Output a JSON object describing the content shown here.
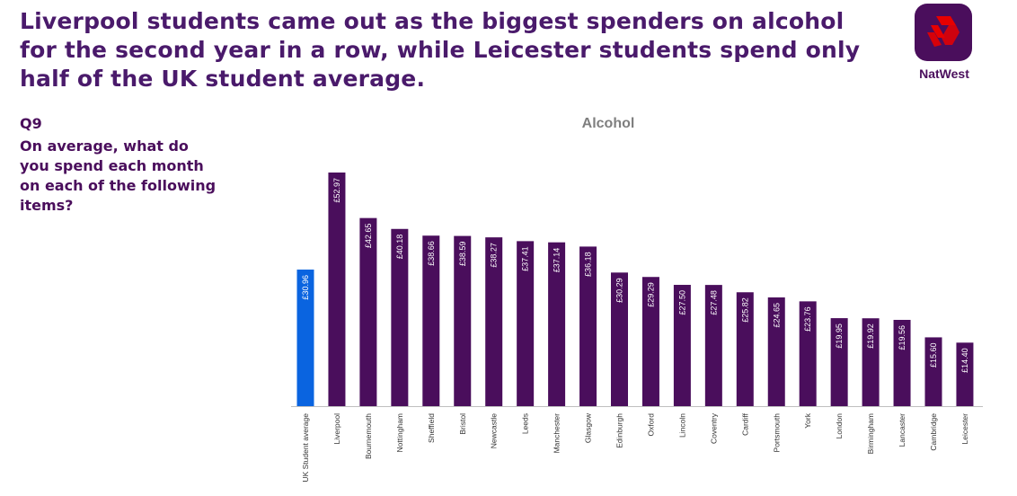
{
  "headline": "Liverpool students came out as the biggest spenders on alcohol for the second year in a row, while Leicester students spend only half of the UK student average.",
  "question": {
    "number": "Q9",
    "text": "On average, what do you spend each month on each of the following items?"
  },
  "logo": {
    "name": "NatWest",
    "colors": {
      "bg": "#4a0e5c",
      "mark": "#e60000"
    }
  },
  "colors": {
    "average": "#0a64e0",
    "city": "#4a0e5c"
  },
  "chart_data": {
    "type": "bar",
    "title": "Alcohol",
    "xlabel": "",
    "ylabel": "",
    "ylim": [
      0,
      55
    ],
    "grid": false,
    "categories": [
      "UK Student average",
      "Liverpool",
      "Bournemouth",
      "Nottingham",
      "Sheffield",
      "Bristol",
      "Newcastle",
      "Leeds",
      "Manchester",
      "Glasgow",
      "Edinburgh",
      "Oxford",
      "Lincoln",
      "Coventry",
      "Cardiff",
      "Portsmouth",
      "York",
      "London",
      "Birmingham",
      "Lancaster",
      "Cambridge",
      "Leicester"
    ],
    "values": [
      30.96,
      52.97,
      42.65,
      40.18,
      38.66,
      38.59,
      38.27,
      37.41,
      37.14,
      36.18,
      30.29,
      29.29,
      27.5,
      27.48,
      25.82,
      24.65,
      23.76,
      19.95,
      19.92,
      19.56,
      15.6,
      14.4
    ],
    "labels": [
      "£30.96",
      "£52.97",
      "£42.65",
      "£40.18",
      "£38.66",
      "£38.59",
      "£38.27",
      "£37.41",
      "£37.14",
      "£36.18",
      "£30.29",
      "£29.29",
      "£27.50",
      "£27.48",
      "£25.82",
      "£24.65",
      "£23.76",
      "£19.95",
      "£19.92",
      "£19.56",
      "£15.60",
      "£14.40"
    ]
  }
}
